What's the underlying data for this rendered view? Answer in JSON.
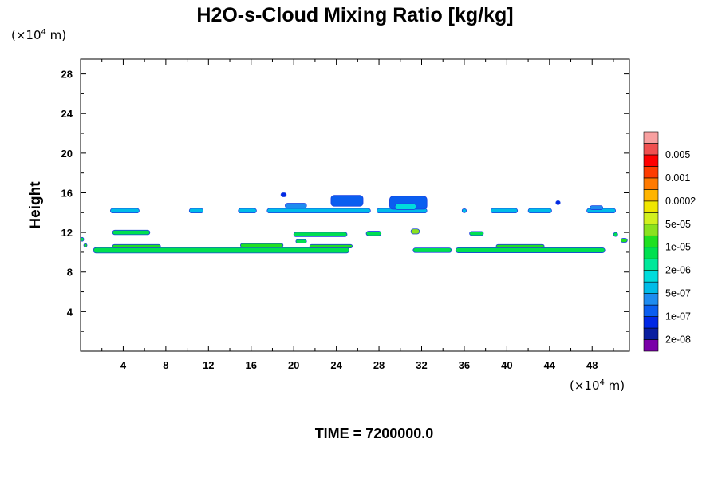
{
  "chart_data": {
    "type": "heatmap",
    "title": "H2O-s-Cloud Mixing Ratio [kg/kg]",
    "ylabel": "Height",
    "xunit": {
      "prefix": "(×10",
      "exp": "4",
      "suffix": " m)"
    },
    "yunit": {
      "prefix": "(×10",
      "exp": "4",
      "suffix": " m)"
    },
    "xlim": [
      0,
      51.5
    ],
    "ylim": [
      0,
      29.5
    ],
    "xticks": [
      4,
      8,
      12,
      16,
      20,
      24,
      28,
      32,
      36,
      40,
      44,
      48
    ],
    "yticks": [
      4,
      8,
      12,
      16,
      20,
      24,
      28
    ],
    "colorbar": {
      "colors": [
        "#7a00a8",
        "#0a1ea0",
        "#0028e6",
        "#0a5ef0",
        "#1e8cf0",
        "#00bce8",
        "#00dcdc",
        "#00e89a",
        "#00e050",
        "#20e020",
        "#8ae21e",
        "#d2f01e",
        "#f0e600",
        "#ffb400",
        "#ff7a00",
        "#ff3c00",
        "#ff0000",
        "#f05050",
        "#f8a0a0"
      ],
      "labels": [
        "2e-08",
        "1e-07",
        "5e-07",
        "2e-06",
        "1e-05",
        "5e-05",
        "0.0002",
        "0.001",
        "0.005"
      ]
    },
    "features": [
      {
        "x0": 1.2,
        "x1": 25.2,
        "y": 10.2,
        "h": 0.55,
        "color": "#00e050"
      },
      {
        "x0": 3.0,
        "x1": 7.5,
        "y": 10.6,
        "h": 0.35,
        "color": "#20e020"
      },
      {
        "x0": 15.0,
        "x1": 19.0,
        "y": 10.7,
        "h": 0.35,
        "color": "#20e020"
      },
      {
        "x0": 21.5,
        "x1": 25.5,
        "y": 10.6,
        "h": 0.35,
        "color": "#20e020"
      },
      {
        "x0": 31.2,
        "x1": 34.8,
        "y": 10.2,
        "h": 0.45,
        "color": "#00e050"
      },
      {
        "x0": 35.2,
        "x1": 49.2,
        "y": 10.2,
        "h": 0.5,
        "color": "#00e050"
      },
      {
        "x0": 39.0,
        "x1": 43.5,
        "y": 10.6,
        "h": 0.35,
        "color": "#20e020"
      },
      {
        "x0": 3.0,
        "x1": 6.5,
        "y": 12.0,
        "h": 0.45,
        "color": "#00e050"
      },
      {
        "x0": 20.0,
        "x1": 25.0,
        "y": 11.8,
        "h": 0.45,
        "color": "#00e050"
      },
      {
        "x0": 20.2,
        "x1": 21.2,
        "y": 11.1,
        "h": 0.35,
        "color": "#00e050"
      },
      {
        "x0": 26.8,
        "x1": 28.2,
        "y": 11.9,
        "h": 0.45,
        "color": "#00e050"
      },
      {
        "x0": 31.0,
        "x1": 31.8,
        "y": 12.1,
        "h": 0.5,
        "color": "#8ae21e"
      },
      {
        "x0": 36.5,
        "x1": 37.8,
        "y": 11.9,
        "h": 0.4,
        "color": "#00e050"
      },
      {
        "x0": 2.8,
        "x1": 5.5,
        "y": 14.2,
        "h": 0.45,
        "color": "#00bce8"
      },
      {
        "x0": 10.2,
        "x1": 11.5,
        "y": 14.2,
        "h": 0.45,
        "color": "#00bce8"
      },
      {
        "x0": 14.8,
        "x1": 16.5,
        "y": 14.2,
        "h": 0.45,
        "color": "#00bce8"
      },
      {
        "x0": 17.5,
        "x1": 27.2,
        "y": 14.2,
        "h": 0.45,
        "color": "#00bce8"
      },
      {
        "x0": 27.8,
        "x1": 32.5,
        "y": 14.2,
        "h": 0.45,
        "color": "#00bce8"
      },
      {
        "x0": 35.8,
        "x1": 36.2,
        "y": 14.2,
        "h": 0.4,
        "color": "#00bce8"
      },
      {
        "x0": 38.5,
        "x1": 41.0,
        "y": 14.2,
        "h": 0.45,
        "color": "#00bce8"
      },
      {
        "x0": 42.0,
        "x1": 44.2,
        "y": 14.2,
        "h": 0.45,
        "color": "#00bce8"
      },
      {
        "x0": 47.5,
        "x1": 50.2,
        "y": 14.2,
        "h": 0.45,
        "color": "#00bce8"
      },
      {
        "x0": 19.2,
        "x1": 21.2,
        "y": 14.7,
        "h": 0.5,
        "color": "#1e8cf0"
      },
      {
        "x0": 23.5,
        "x1": 26.5,
        "y": 15.2,
        "h": 1.1,
        "color": "#0a5ef0"
      },
      {
        "x0": 29.0,
        "x1": 32.5,
        "y": 15.0,
        "h": 1.3,
        "color": "#0a5ef0"
      },
      {
        "x0": 29.5,
        "x1": 31.5,
        "y": 14.6,
        "h": 0.6,
        "color": "#00dcdc"
      },
      {
        "x0": 47.8,
        "x1": 49.0,
        "y": 14.5,
        "h": 0.4,
        "color": "#1e8cf0"
      },
      {
        "x0": 18.8,
        "x1": 19.3,
        "y": 15.8,
        "h": 0.4,
        "color": "#0028e6"
      },
      {
        "x0": 44.6,
        "x1": 45.0,
        "y": 15.0,
        "h": 0.4,
        "color": "#0028e6"
      },
      {
        "x0": 0.0,
        "x1": 0.3,
        "y": 11.3,
        "h": 0.4,
        "color": "#00e050"
      },
      {
        "x0": 0.3,
        "x1": 0.6,
        "y": 10.7,
        "h": 0.35,
        "color": "#20e020"
      },
      {
        "x0": 50.7,
        "x1": 51.3,
        "y": 11.2,
        "h": 0.4,
        "color": "#20e020"
      },
      {
        "x0": 50.0,
        "x1": 50.4,
        "y": 11.8,
        "h": 0.4,
        "color": "#00e050"
      }
    ]
  },
  "footer": {
    "time": "TIME = 7200000.0"
  }
}
